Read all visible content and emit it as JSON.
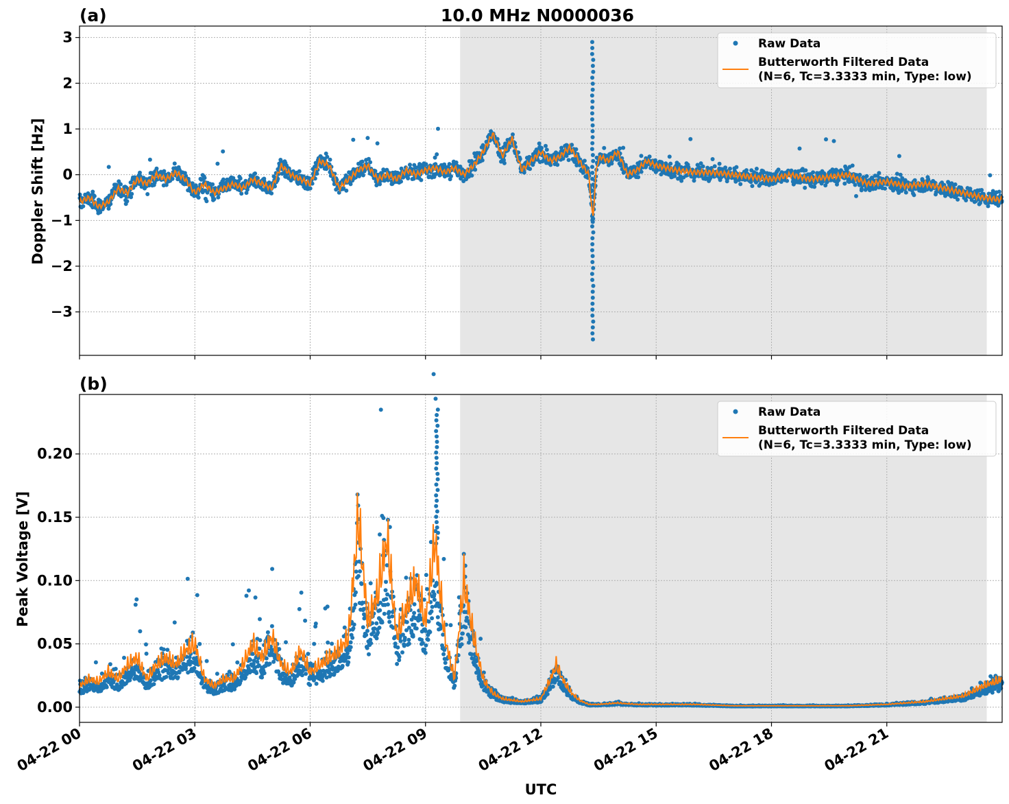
{
  "figure": {
    "title": "10.0 MHz N0000036",
    "xlabel": "UTC"
  },
  "colors": {
    "raw": "#1f77b4",
    "filtered": "#ff7f0e",
    "shade": "#e6e6e6",
    "grid": "#b0b0b0"
  },
  "chart_data": [
    {
      "type": "scatter",
      "panel_label": "(a)",
      "ylabel": "Doppler Shift [Hz]",
      "xlim": [
        0,
        24
      ],
      "ylim": [
        -3.95,
        3.25
      ],
      "x_unit": "hours UTC on 04-22",
      "x_ticks": [
        0,
        3,
        6,
        9,
        12,
        15,
        18,
        21
      ],
      "y_ticks": [
        -3,
        -2,
        -1,
        0,
        1,
        2,
        3
      ],
      "y_tick_labels": [
        "−3",
        "−2",
        "−1",
        "0",
        "1",
        "2",
        "3"
      ],
      "grid": true,
      "legend_position": "upper right",
      "legend": {
        "raw": "Raw Data",
        "filtered_line1": "Butterworth Filtered Data",
        "filtered_line2": "(N=6, Tc=3.3333 min, Type: low)"
      },
      "shaded_region": [
        9.9,
        23.6
      ],
      "series": [
        {
          "name": "Butterworth Filtered Data",
          "style": "line",
          "x": [
            0,
            0.25,
            0.5,
            0.75,
            1.0,
            1.25,
            1.5,
            1.75,
            2.0,
            2.25,
            2.5,
            2.75,
            3.0,
            3.25,
            3.5,
            3.75,
            4.0,
            4.25,
            4.5,
            4.75,
            5.0,
            5.25,
            5.5,
            5.75,
            6.0,
            6.25,
            6.5,
            6.75,
            7.0,
            7.25,
            7.5,
            7.75,
            8.0,
            8.25,
            8.5,
            8.75,
            9.0,
            9.25,
            9.5,
            9.75,
            10.0,
            10.25,
            10.5,
            10.75,
            11.0,
            11.25,
            11.5,
            11.75,
            12.0,
            12.25,
            12.5,
            12.75,
            13.0,
            13.25,
            13.35,
            13.45,
            13.55,
            13.75,
            14.0,
            14.25,
            14.5,
            14.75,
            15.0,
            15.5,
            16.0,
            16.5,
            17.0,
            17.5,
            18.0,
            18.5,
            19.0,
            19.5,
            20.0,
            20.5,
            21.0,
            21.5,
            22.0,
            22.5,
            23.0,
            23.5,
            24.0
          ],
          "y": [
            -0.6,
            -0.5,
            -0.7,
            -0.6,
            -0.3,
            -0.4,
            -0.1,
            -0.2,
            0.0,
            -0.1,
            0.05,
            -0.1,
            -0.4,
            -0.2,
            -0.4,
            -0.3,
            -0.2,
            -0.3,
            -0.1,
            -0.2,
            -0.3,
            0.2,
            0.0,
            -0.1,
            -0.2,
            0.3,
            0.2,
            -0.3,
            -0.1,
            0.1,
            0.2,
            -0.1,
            0.0,
            -0.1,
            0.1,
            0.0,
            0.1,
            0.15,
            0.05,
            0.15,
            0.0,
            0.2,
            0.5,
            0.9,
            0.4,
            0.8,
            0.1,
            0.3,
            0.5,
            0.3,
            0.4,
            0.6,
            0.3,
            0.0,
            -1.0,
            0.2,
            0.4,
            0.3,
            0.5,
            0.0,
            0.1,
            0.3,
            0.2,
            0.1,
            0.05,
            0.05,
            0.0,
            -0.05,
            -0.1,
            0.0,
            -0.1,
            -0.05,
            0.0,
            -0.2,
            -0.15,
            -0.25,
            -0.2,
            -0.3,
            -0.4,
            -0.5,
            -0.55
          ]
        },
        {
          "name": "Raw Data",
          "style": "markers",
          "spike": {
            "x": 13.35,
            "y_min": -3.6,
            "y_max": 2.9
          }
        }
      ]
    },
    {
      "type": "scatter",
      "panel_label": "(b)",
      "ylabel": "Peak Voltage [V]",
      "xlim": [
        0,
        24
      ],
      "ylim": [
        -0.012,
        0.247
      ],
      "x_unit": "hours UTC on 04-22",
      "x_ticks": [
        0,
        3,
        6,
        9,
        12,
        15,
        18,
        21
      ],
      "x_tick_labels": [
        "04-22 00",
        "04-22 03",
        "04-22 06",
        "04-22 09",
        "04-22 12",
        "04-22 15",
        "04-22 18",
        "04-22 21"
      ],
      "y_ticks": [
        0.0,
        0.05,
        0.1,
        0.15,
        0.2
      ],
      "y_tick_labels": [
        "0.00",
        "0.05",
        "0.10",
        "0.15",
        "0.20"
      ],
      "grid": true,
      "legend_position": "upper right",
      "legend": {
        "raw": "Raw Data",
        "filtered_line1": "Butterworth Filtered Data",
        "filtered_line2": "(N=6, Tc=3.3333 min, Type: low)"
      },
      "shaded_region": [
        9.9,
        23.6
      ],
      "series": [
        {
          "name": "Butterworth Filtered Data",
          "style": "line",
          "x": [
            0,
            0.25,
            0.5,
            0.75,
            1.0,
            1.25,
            1.5,
            1.75,
            2.0,
            2.25,
            2.5,
            2.75,
            3.0,
            3.25,
            3.5,
            3.75,
            4.0,
            4.25,
            4.5,
            4.75,
            5.0,
            5.25,
            5.5,
            5.75,
            6.0,
            6.25,
            6.5,
            6.75,
            7.0,
            7.25,
            7.5,
            7.75,
            8.0,
            8.25,
            8.5,
            8.75,
            9.0,
            9.25,
            9.5,
            9.75,
            10.0,
            10.25,
            10.5,
            10.75,
            11.0,
            11.5,
            12.0,
            12.25,
            12.4,
            12.6,
            12.8,
            13.0,
            13.25,
            13.5,
            14.0,
            14.5,
            15.0,
            16.0,
            17.0,
            18.0,
            19.0,
            20.0,
            21.0,
            21.5,
            22.0,
            22.5,
            23.0,
            23.5,
            24.0
          ],
          "y": [
            0.015,
            0.02,
            0.018,
            0.025,
            0.02,
            0.03,
            0.035,
            0.02,
            0.03,
            0.035,
            0.03,
            0.04,
            0.045,
            0.02,
            0.015,
            0.02,
            0.02,
            0.03,
            0.045,
            0.035,
            0.05,
            0.03,
            0.025,
            0.04,
            0.025,
            0.03,
            0.035,
            0.04,
            0.05,
            0.135,
            0.06,
            0.08,
            0.12,
            0.05,
            0.07,
            0.09,
            0.06,
            0.12,
            0.05,
            0.02,
            0.09,
            0.05,
            0.02,
            0.01,
            0.006,
            0.004,
            0.006,
            0.02,
            0.03,
            0.018,
            0.01,
            0.005,
            0.002,
            0.002,
            0.003,
            0.002,
            0.002,
            0.002,
            0.001,
            0.001,
            0.001,
            0.001,
            0.002,
            0.003,
            0.004,
            0.006,
            0.008,
            0.015,
            0.02
          ]
        },
        {
          "name": "Raw Data",
          "style": "markers",
          "max_point": {
            "x": 9.3,
            "y": 0.235
          }
        }
      ]
    }
  ]
}
